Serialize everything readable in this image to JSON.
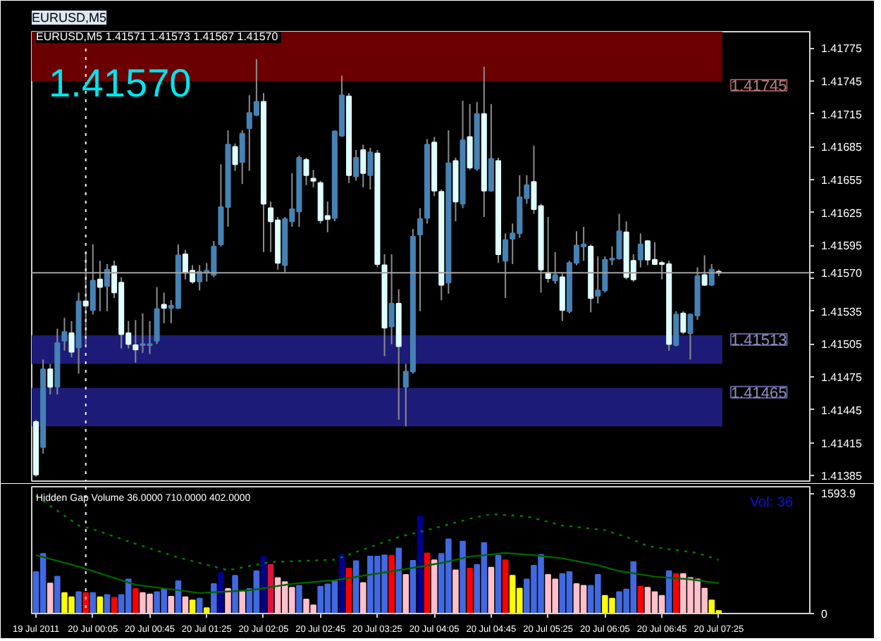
{
  "chart_data": [
    {
      "type": "candlestick",
      "title": "EURUSD,M5",
      "subtitle": "EURUSD,M5  1.41571 1.41573 1.41567 1.41570",
      "annotations": [
        "1.41570"
      ],
      "x": [
        "2011-07-19T23:25",
        "2011-07-19T23:30",
        "2011-07-19T23:35",
        "2011-07-19T23:40",
        "2011-07-19T23:45",
        "2011-07-19T23:50",
        "2011-07-19T23:55",
        "2011-07-20T00:00",
        "2011-07-20T00:05",
        "2011-07-20T00:10",
        "2011-07-20T00:15",
        "2011-07-20T00:20",
        "2011-07-20T00:25",
        "2011-07-20T00:30",
        "2011-07-20T00:35",
        "2011-07-20T00:40",
        "2011-07-20T00:45",
        "2011-07-20T00:50",
        "2011-07-20T00:55",
        "2011-07-20T01:00",
        "2011-07-20T01:05",
        "2011-07-20T01:10",
        "2011-07-20T01:15",
        "2011-07-20T01:20",
        "2011-07-20T01:25",
        "2011-07-20T01:30",
        "2011-07-20T01:35",
        "2011-07-20T01:40",
        "2011-07-20T01:45",
        "2011-07-20T01:50",
        "2011-07-20T01:55",
        "2011-07-20T02:00",
        "2011-07-20T02:05",
        "2011-07-20T02:10",
        "2011-07-20T02:15",
        "2011-07-20T02:20",
        "2011-07-20T02:25",
        "2011-07-20T02:30",
        "2011-07-20T02:35",
        "2011-07-20T02:40",
        "2011-07-20T02:45",
        "2011-07-20T02:50",
        "2011-07-20T02:55",
        "2011-07-20T03:00",
        "2011-07-20T03:05",
        "2011-07-20T03:10",
        "2011-07-20T03:15",
        "2011-07-20T03:20",
        "2011-07-20T03:25",
        "2011-07-20T03:30",
        "2011-07-20T03:35",
        "2011-07-20T03:40",
        "2011-07-20T03:45",
        "2011-07-20T03:50",
        "2011-07-20T03:55",
        "2011-07-20T04:00",
        "2011-07-20T04:05",
        "2011-07-20T04:10",
        "2011-07-20T04:15",
        "2011-07-20T04:20",
        "2011-07-20T04:25",
        "2011-07-20T04:30",
        "2011-07-20T04:35",
        "2011-07-20T04:40",
        "2011-07-20T04:45",
        "2011-07-20T04:50",
        "2011-07-20T04:55",
        "2011-07-20T05:00",
        "2011-07-20T05:05",
        "2011-07-20T05:10",
        "2011-07-20T05:15",
        "2011-07-20T05:20",
        "2011-07-20T05:25",
        "2011-07-20T05:30",
        "2011-07-20T05:35",
        "2011-07-20T05:40",
        "2011-07-20T05:45",
        "2011-07-20T05:50",
        "2011-07-20T05:55",
        "2011-07-20T06:00",
        "2011-07-20T06:05",
        "2011-07-20T06:10",
        "2011-07-20T06:15",
        "2011-07-20T06:20",
        "2011-07-20T06:25",
        "2011-07-20T06:30",
        "2011-07-20T06:35",
        "2011-07-20T06:40",
        "2011-07-20T06:45",
        "2011-07-20T06:50",
        "2011-07-20T06:55",
        "2011-07-20T07:00",
        "2011-07-20T07:05",
        "2011-07-20T07:10",
        "2011-07-20T07:15",
        "2011-07-20T07:20",
        "2011-07-20T07:25"
      ],
      "ohlc": [
        [
          1.41434,
          1.41436,
          1.41384,
          1.41386
        ],
        [
          1.41411,
          1.41491,
          1.41405,
          1.41482
        ],
        [
          1.41482,
          1.41487,
          1.41459,
          1.41466
        ],
        [
          1.41466,
          1.41519,
          1.41459,
          1.41506
        ],
        [
          1.41508,
          1.41529,
          1.41499,
          1.41516
        ],
        [
          1.41515,
          1.41526,
          1.41493,
          1.41498
        ],
        [
          1.41502,
          1.41552,
          1.41478,
          1.41544
        ],
        [
          1.41544,
          1.41589,
          1.41505,
          1.4154
        ],
        [
          1.41536,
          1.41596,
          1.41532,
          1.41563
        ],
        [
          1.41564,
          1.41581,
          1.41535,
          1.41557
        ],
        [
          1.41558,
          1.41578,
          1.41535,
          1.41573
        ],
        [
          1.41576,
          1.41581,
          1.41547,
          1.41552
        ],
        [
          1.41561,
          1.41566,
          1.41501,
          1.41514
        ],
        [
          1.41515,
          1.41526,
          1.41501,
          1.41505
        ],
        [
          1.41504,
          1.41527,
          1.41488,
          1.415
        ],
        [
          1.41504,
          1.41533,
          1.41497,
          1.41505
        ],
        [
          1.41504,
          1.41526,
          1.41496,
          1.41505
        ],
        [
          1.41508,
          1.41557,
          1.41505,
          1.41537
        ],
        [
          1.41541,
          1.41552,
          1.41524,
          1.41538
        ],
        [
          1.41538,
          1.41545,
          1.41524,
          1.4154
        ],
        [
          1.41538,
          1.41596,
          1.41537,
          1.41586
        ],
        [
          1.41587,
          1.41591,
          1.41564,
          1.4157
        ],
        [
          1.41572,
          1.41577,
          1.4156,
          1.41562
        ],
        [
          1.41562,
          1.41577,
          1.41554,
          1.41571
        ],
        [
          1.4157,
          1.41579,
          1.41562,
          1.41572
        ],
        [
          1.41568,
          1.41599,
          1.41566,
          1.41594
        ],
        [
          1.41596,
          1.41669,
          1.41594,
          1.4163
        ],
        [
          1.4163,
          1.417,
          1.41612,
          1.41687
        ],
        [
          1.41685,
          1.41688,
          1.41663,
          1.41669
        ],
        [
          1.41671,
          1.417,
          1.41651,
          1.41697
        ],
        [
          1.41702,
          1.41732,
          1.41663,
          1.41716
        ],
        [
          1.41714,
          1.41765,
          1.41713,
          1.41726
        ],
        [
          1.41726,
          1.41734,
          1.41589,
          1.41633
        ],
        [
          1.41629,
          1.41635,
          1.41589,
          1.41617
        ],
        [
          1.41618,
          1.41621,
          1.41573,
          1.41579
        ],
        [
          1.41577,
          1.41621,
          1.4157,
          1.41619
        ],
        [
          1.41617,
          1.41661,
          1.41612,
          1.41628
        ],
        [
          1.41626,
          1.41677,
          1.41612,
          1.41675
        ],
        [
          1.41673,
          1.41675,
          1.4165,
          1.41659
        ],
        [
          1.41656,
          1.41664,
          1.41648,
          1.41654
        ],
        [
          1.41652,
          1.41654,
          1.41615,
          1.41618
        ],
        [
          1.41622,
          1.41635,
          1.41607,
          1.41619
        ],
        [
          1.4162,
          1.417,
          1.41617,
          1.41699
        ],
        [
          1.41695,
          1.4175,
          1.41694,
          1.41732
        ],
        [
          1.41731,
          1.41734,
          1.41652,
          1.41659
        ],
        [
          1.41658,
          1.41682,
          1.41654,
          1.41675
        ],
        [
          1.41682,
          1.41687,
          1.41648,
          1.41661
        ],
        [
          1.41659,
          1.41684,
          1.41646,
          1.4168
        ],
        [
          1.41679,
          1.41682,
          1.41575,
          1.41578
        ],
        [
          1.41577,
          1.41587,
          1.41494,
          1.4152
        ],
        [
          1.41521,
          1.41587,
          1.41505,
          1.41542
        ],
        [
          1.41542,
          1.41555,
          1.41436,
          1.41503
        ],
        [
          1.41466,
          1.41487,
          1.4143,
          1.4148
        ],
        [
          1.4148,
          1.4161,
          1.41478,
          1.41603
        ],
        [
          1.41605,
          1.41629,
          1.41535,
          1.41619
        ],
        [
          1.4162,
          1.41692,
          1.41615,
          1.41687
        ],
        [
          1.41689,
          1.41694,
          1.4164,
          1.41645
        ],
        [
          1.41644,
          1.41646,
          1.41545,
          1.41559
        ],
        [
          1.41561,
          1.417,
          1.41551,
          1.4167
        ],
        [
          1.41672,
          1.41675,
          1.41617,
          1.41635
        ],
        [
          1.41633,
          1.41727,
          1.41629,
          1.41691
        ],
        [
          1.41694,
          1.41724,
          1.41664,
          1.41666
        ],
        [
          1.41665,
          1.41726,
          1.41663,
          1.41715
        ],
        [
          1.41715,
          1.41758,
          1.41621,
          1.41645
        ],
        [
          1.41645,
          1.41724,
          1.41644,
          1.41674
        ],
        [
          1.41672,
          1.41675,
          1.41579,
          1.41587
        ],
        [
          1.41581,
          1.41606,
          1.41547,
          1.416
        ],
        [
          1.41601,
          1.41615,
          1.41578,
          1.41606
        ],
        [
          1.41606,
          1.41659,
          1.41602,
          1.41639
        ],
        [
          1.41638,
          1.41659,
          1.41633,
          1.4165
        ],
        [
          1.41653,
          1.41686,
          1.41624,
          1.41628
        ],
        [
          1.41631,
          1.41633,
          1.41552,
          1.41573
        ],
        [
          1.4157,
          1.41621,
          1.41561,
          1.41565
        ],
        [
          1.41563,
          1.41589,
          1.4156,
          1.41568
        ],
        [
          1.41566,
          1.4157,
          1.41526,
          1.41536
        ],
        [
          1.41535,
          1.41581,
          1.41533,
          1.41579
        ],
        [
          1.41579,
          1.41608,
          1.41577,
          1.41595
        ],
        [
          1.41594,
          1.41612,
          1.41581,
          1.41596
        ],
        [
          1.41594,
          1.41596,
          1.41534,
          1.41547
        ],
        [
          1.41549,
          1.41585,
          1.41542,
          1.41554
        ],
        [
          1.41554,
          1.41585,
          1.41552,
          1.41582
        ],
        [
          1.41582,
          1.41594,
          1.41577,
          1.41583
        ],
        [
          1.41583,
          1.41624,
          1.41582,
          1.41608
        ],
        [
          1.41607,
          1.41617,
          1.41564,
          1.41566
        ],
        [
          1.41581,
          1.41587,
          1.41562,
          1.41564
        ],
        [
          1.41582,
          1.41606,
          1.41575,
          1.41596
        ],
        [
          1.41599,
          1.416,
          1.41577,
          1.41582
        ],
        [
          1.41582,
          1.41598,
          1.41577,
          1.41578
        ],
        [
          1.41579,
          1.41581,
          1.41564,
          1.41578
        ],
        [
          1.41578,
          1.41581,
          1.41499,
          1.41505
        ],
        [
          1.41504,
          1.41535,
          1.41503,
          1.41532
        ],
        [
          1.41533,
          1.41535,
          1.41514,
          1.41516
        ],
        [
          1.41515,
          1.41533,
          1.41491,
          1.41532
        ],
        [
          1.41531,
          1.41575,
          1.41527,
          1.41567
        ],
        [
          1.41568,
          1.41586,
          1.41558,
          1.41559
        ],
        [
          1.41559,
          1.41578,
          1.41558,
          1.41573
        ],
        [
          1.41571,
          1.41573,
          1.41567,
          1.4157
        ]
      ],
      "colors": [
        "#e0ffff",
        "#4682b4",
        "#e0ffff",
        "#4682b4",
        "#4682b4",
        "#e0ffff",
        "#4682b4",
        "#e0ffff",
        "#4682b4",
        "#e0ffff",
        "#4682b4",
        "#e0ffff",
        "#e0ffff",
        "#e0ffff",
        "#e0ffff",
        "#4682b4",
        "#4682b4",
        "#4682b4",
        "#e0ffff",
        "#4682b4",
        "#4682b4",
        "#e0ffff",
        "#e0ffff",
        "#4682b4",
        "#4682b4",
        "#4682b4",
        "#4682b4",
        "#4682b4",
        "#e0ffff",
        "#4682b4",
        "#4682b4",
        "#4682b4",
        "#e0ffff",
        "#e0ffff",
        "#e0ffff",
        "#4682b4",
        "#4682b4",
        "#4682b4",
        "#e0ffff",
        "#e0ffff",
        "#e0ffff",
        "#e0ffff",
        "#4682b4",
        "#4682b4",
        "#e0ffff",
        "#4682b4",
        "#e0ffff",
        "#4682b4",
        "#e0ffff",
        "#e0ffff",
        "#4682b4",
        "#e0ffff",
        "#4682b4",
        "#4682b4",
        "#4682b4",
        "#4682b4",
        "#e0ffff",
        "#e0ffff",
        "#4682b4",
        "#e0ffff",
        "#4682b4",
        "#e0ffff",
        "#4682b4",
        "#e0ffff",
        "#4682b4",
        "#e0ffff",
        "#4682b4",
        "#4682b4",
        "#4682b4",
        "#4682b4",
        "#e0ffff",
        "#e0ffff",
        "#e0ffff",
        "#4682b4",
        "#e0ffff",
        "#4682b4",
        "#4682b4",
        "#4682b4",
        "#e0ffff",
        "#4682b4",
        "#4682b4",
        "#4682b4",
        "#4682b4",
        "#e0ffff",
        "#e0ffff",
        "#4682b4",
        "#e0ffff",
        "#e0ffff",
        "#e0ffff",
        "#e0ffff",
        "#4682b4",
        "#e0ffff",
        "#4682b4",
        "#4682b4",
        "#e0ffff",
        "#4682b4",
        "#e0ffff"
      ],
      "xlim": [
        "2011-07-19T23:22",
        "2011-07-20T08:29"
      ],
      "ylim": [
        1.4138,
        1.4179
      ],
      "yticks": [
        1.41385,
        1.41415,
        1.41445,
        1.41475,
        1.41505,
        1.41535,
        {
          "value": 1.41565,
          "label": null
        },
        1.41595,
        1.41625,
        1.41655,
        1.41685,
        1.41715,
        1.41745,
        1.41775
      ],
      "tick_labels": "y",
      "grid": false,
      "bands": [
        {
          "axis": "y",
          "from": 1.41745,
          "to": 1.4179,
          "label": "1.41745",
          "color": "#6b0000"
        },
        {
          "axis": "y",
          "from": 1.41513,
          "to": 1.41487,
          "label": "1.41513",
          "color": "#1c1c78"
        },
        {
          "axis": "y",
          "from": 1.41465,
          "to": 1.4143,
          "label": "1.41465",
          "color": "#1c1c78"
        }
      ],
      "ref_lines": [
        {
          "axis": "y",
          "value": 1.4157,
          "label": "1.41570",
          "color": "#a0a0a0",
          "line_style": "solid"
        },
        {
          "axis": "x",
          "value": "2011-07-20T00:00",
          "color": "#ffffff",
          "line_style": "dotted"
        }
      ]
    },
    {
      "type": "bar",
      "title": "Hidden Gap Volume 36.0000 710.0000 402.0000",
      "annotations": [
        "Vol: 36"
      ],
      "x": [
        "2011-07-19T23:25",
        "2011-07-19T23:30",
        "2011-07-19T23:35",
        "2011-07-19T23:40",
        "2011-07-19T23:45",
        "2011-07-19T23:50",
        "2011-07-19T23:55",
        "2011-07-20T00:00",
        "2011-07-20T00:05",
        "2011-07-20T00:10",
        "2011-07-20T00:15",
        "2011-07-20T00:20",
        "2011-07-20T00:25",
        "2011-07-20T00:30",
        "2011-07-20T00:35",
        "2011-07-20T00:40",
        "2011-07-20T00:45",
        "2011-07-20T00:50",
        "2011-07-20T00:55",
        "2011-07-20T01:00",
        "2011-07-20T01:05",
        "2011-07-20T01:10",
        "2011-07-20T01:15",
        "2011-07-20T01:20",
        "2011-07-20T01:25",
        "2011-07-20T01:30",
        "2011-07-20T01:35",
        "2011-07-20T01:40",
        "2011-07-20T01:45",
        "2011-07-20T01:50",
        "2011-07-20T01:55",
        "2011-07-20T02:00",
        "2011-07-20T02:05",
        "2011-07-20T02:10",
        "2011-07-20T02:15",
        "2011-07-20T02:20",
        "2011-07-20T02:25",
        "2011-07-20T02:30",
        "2011-07-20T02:35",
        "2011-07-20T02:40",
        "2011-07-20T02:45",
        "2011-07-20T02:50",
        "2011-07-20T02:55",
        "2011-07-20T03:00",
        "2011-07-20T03:05",
        "2011-07-20T03:10",
        "2011-07-20T03:15",
        "2011-07-20T03:20",
        "2011-07-20T03:25",
        "2011-07-20T03:30",
        "2011-07-20T03:35",
        "2011-07-20T03:40",
        "2011-07-20T03:45",
        "2011-07-20T03:50",
        "2011-07-20T03:55",
        "2011-07-20T04:00",
        "2011-07-20T04:05",
        "2011-07-20T04:10",
        "2011-07-20T04:15",
        "2011-07-20T04:20",
        "2011-07-20T04:25",
        "2011-07-20T04:30",
        "2011-07-20T04:35",
        "2011-07-20T04:40",
        "2011-07-20T04:45",
        "2011-07-20T04:50",
        "2011-07-20T04:55",
        "2011-07-20T05:00",
        "2011-07-20T05:05",
        "2011-07-20T05:10",
        "2011-07-20T05:15",
        "2011-07-20T05:20",
        "2011-07-20T05:25",
        "2011-07-20T05:30",
        "2011-07-20T05:35",
        "2011-07-20T05:40",
        "2011-07-20T05:45",
        "2011-07-20T05:50",
        "2011-07-20T05:55",
        "2011-07-20T06:00",
        "2011-07-20T06:05",
        "2011-07-20T06:10",
        "2011-07-20T06:15",
        "2011-07-20T06:20",
        "2011-07-20T06:25",
        "2011-07-20T06:30",
        "2011-07-20T06:35",
        "2011-07-20T06:40",
        "2011-07-20T06:45",
        "2011-07-20T06:50",
        "2011-07-20T06:55",
        "2011-07-20T07:00",
        "2011-07-20T07:05",
        "2011-07-20T07:10",
        "2011-07-20T07:15",
        "2011-07-20T07:20",
        "2011-07-20T07:25"
      ],
      "values": [
        550,
        791,
        399,
        489,
        272,
        217,
        284,
        272,
        272,
        217,
        248,
        211,
        248,
        453,
        326,
        272,
        254,
        284,
        320,
        223,
        429,
        217,
        175,
        199,
        72,
        393,
        538,
        326,
        501,
        290,
        326,
        562,
        755,
        646,
        471,
        417,
        344,
        368,
        187,
        109,
        356,
        387,
        429,
        779,
        598,
        695,
        405,
        755,
        755,
        773,
        767,
        864,
        513,
        701,
        1287,
        797,
        707,
        791,
        985,
        574,
        954,
        598,
        646,
        936,
        610,
        767,
        707,
        501,
        332,
        453,
        634,
        779,
        513,
        453,
        525,
        550,
        393,
        368,
        368,
        513,
        236,
        199,
        284,
        320,
        683,
        356,
        344,
        284,
        236,
        562,
        525,
        525,
        471,
        453,
        332,
        175,
        36
      ],
      "colors": [
        "#4169e1",
        "#4169e1",
        "#ffc0cb",
        "#4169e1",
        "#ffff00",
        "#ffff00",
        "#4169e1",
        "#ff0000",
        "#4169e1",
        "#ffff00",
        "#4169e1",
        "#ff0000",
        "#4169e1",
        "#4169e1",
        "#ff0000",
        "#ffc0cb",
        "#ffc0cb",
        "#4169e1",
        "#4169e1",
        "#ffc0cb",
        "#4169e1",
        "#ffc0cb",
        "#ffff00",
        "#4169e1",
        "#ffff00",
        "#4169e1",
        "#00008b",
        "#ffc0cb",
        "#4169e1",
        "#ffc0cb",
        "#4169e1",
        "#4169e1",
        "#00008b",
        "#dc143c",
        "#ffc0cb",
        "#ffc0cb",
        "#ffc0cb",
        "#4169e1",
        "#ffc0cb",
        "#ffc0cb",
        "#4169e1",
        "#4169e1",
        "#4169e1",
        "#00008b",
        "#ff0000",
        "#4169e1",
        "#ffc0cb",
        "#4169e1",
        "#4169e1",
        "#4169e1",
        "#ff0000",
        "#4169e1",
        "#ffc0cb",
        "#4169e1",
        "#00008b",
        "#ff0000",
        "#ffc0cb",
        "#4169e1",
        "#4169e1",
        "#ffc0cb",
        "#4169e1",
        "#ff0000",
        "#4169e1",
        "#4169e1",
        "#ffc0cb",
        "#4169e1",
        "#ff0000",
        "#ffff00",
        "#ffff00",
        "#4169e1",
        "#4169e1",
        "#4169e1",
        "#ffc0cb",
        "#ffc0cb",
        "#4169e1",
        "#4169e1",
        "#ffc0cb",
        "#ffc0cb",
        "#4169e1",
        "#4169e1",
        "#ffff00",
        "#ffff00",
        "#4169e1",
        "#4169e1",
        "#4169e1",
        "#ff0000",
        "#ffc0cb",
        "#ffc0cb",
        "#ffc0cb",
        "#4169e1",
        "#ff0000",
        "#ffc0cb",
        "#ffc0cb",
        "#ffc0cb",
        "#ffc0cb",
        "#ffff00",
        "#ffff00"
      ],
      "series": [
        {
          "type": "line",
          "color": "#008000",
          "line_style": "dotted",
          "x": [
            "2011-07-19T23:25",
            "2011-07-19T23:55",
            "2011-07-20T00:05",
            "2011-07-20T00:35",
            "2011-07-20T01:05",
            "2011-07-20T01:40",
            "2011-07-20T02:10",
            "2011-07-20T02:55",
            "2011-07-20T03:40",
            "2011-07-20T04:00",
            "2011-07-20T04:30",
            "2011-07-20T04:45",
            "2011-07-20T05:10",
            "2011-07-20T05:35",
            "2011-07-20T06:05",
            "2011-07-20T06:20",
            "2011-07-20T06:35",
            "2011-07-20T06:50",
            "2011-07-20T07:10",
            "2011-07-20T07:25"
          ],
          "values": [
            1558,
            1166,
            1117,
            924,
            743,
            574,
            683,
            713,
            1015,
            1105,
            1256,
            1317,
            1287,
            1166,
            1105,
            1015,
            894,
            852,
            803,
            710
          ]
        },
        {
          "type": "line",
          "color": "#006400",
          "line_style": "solid",
          "x": [
            "2011-07-19T23:25",
            "2011-07-19T23:55",
            "2011-07-20T00:35",
            "2011-07-20T01:20",
            "2011-07-20T01:55",
            "2011-07-20T02:25",
            "2011-07-20T02:55",
            "2011-07-20T03:40",
            "2011-07-20T04:10",
            "2011-07-20T04:30",
            "2011-07-20T04:55",
            "2011-07-20T05:15",
            "2011-07-20T05:35",
            "2011-07-20T06:00",
            "2011-07-20T06:15",
            "2011-07-20T06:40",
            "2011-07-20T07:05",
            "2011-07-20T07:25"
          ],
          "values": [
            773,
            622,
            381,
            272,
            308,
            393,
            441,
            574,
            670,
            755,
            803,
            773,
            731,
            640,
            562,
            489,
            453,
            402
          ]
        }
      ],
      "xlim": [
        "2011-07-19T23:22",
        "2011-07-20T08:29"
      ],
      "xticks": [
        {
          "value": "2011-07-19T23:25",
          "label": "19 Jul 2011"
        },
        {
          "value": "2011-07-20T00:05",
          "label": "20 Jul 00:05"
        },
        {
          "value": "2011-07-20T00:45",
          "label": "20 Jul 00:45"
        },
        {
          "value": "2011-07-20T01:25",
          "label": "20 Jul 01:25"
        },
        {
          "value": "2011-07-20T02:05",
          "label": "20 Jul 02:05"
        },
        {
          "value": "2011-07-20T02:45",
          "label": "20 Jul 02:45"
        },
        {
          "value": "2011-07-20T03:25",
          "label": "20 Jul 03:25"
        },
        {
          "value": "2011-07-20T04:05",
          "label": "20 Jul 04:05"
        },
        {
          "value": "2011-07-20T04:45",
          "label": "20 Jul 04:45"
        },
        {
          "value": "2011-07-20T05:25",
          "label": "20 Jul 05:25"
        },
        {
          "value": "2011-07-20T06:05",
          "label": "20 Jul 06:05"
        },
        {
          "value": "2011-07-20T06:45",
          "label": "20 Jul 06:45"
        },
        {
          "value": "2011-07-20T07:25",
          "label": "20 Jul 07:25"
        }
      ],
      "ylim": [
        0,
        1680
      ],
      "yticks": [
        0,
        1593.9
      ],
      "grid": false,
      "ref_lines": [
        {
          "axis": "x",
          "value": "2011-07-20T00:00",
          "color": "#ffffff",
          "line_style": "dotted"
        }
      ]
    }
  ]
}
